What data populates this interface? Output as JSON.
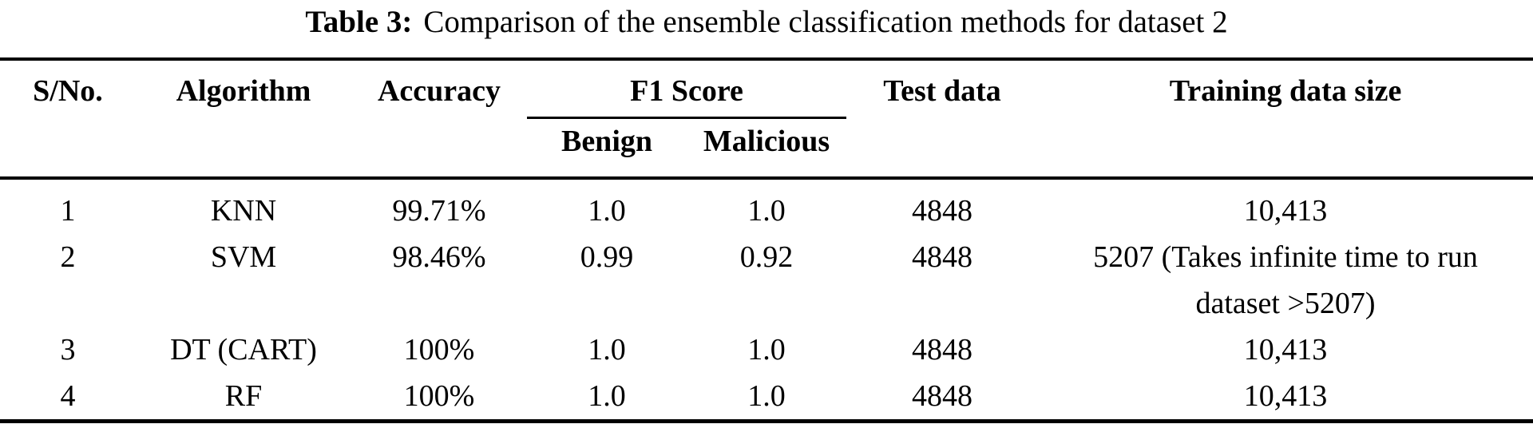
{
  "caption": {
    "label": "Table 3:",
    "text": "Comparison of the ensemble classification methods for dataset 2"
  },
  "table": {
    "headers": {
      "sno": "S/No.",
      "algorithm": "Algorithm",
      "accuracy": "Accuracy",
      "f1_group": "F1 Score",
      "f1_benign": "Benign",
      "f1_malicious": "Malicious",
      "test_data": "Test data",
      "training_size": "Training data size"
    },
    "rows": [
      {
        "sno": "1",
        "algorithm": "KNN",
        "accuracy": "99.71%",
        "benign": "1.0",
        "malicious": "1.0",
        "test": "4848",
        "training": "10,413"
      },
      {
        "sno": "2",
        "algorithm": "SVM",
        "accuracy": "98.46%",
        "benign": "0.99",
        "malicious": "0.92",
        "test": "4848",
        "training": "5207 (Takes infinite time to run dataset >5207)"
      },
      {
        "sno": "3",
        "algorithm": "DT (CART)",
        "accuracy": "100%",
        "benign": "1.0",
        "malicious": "1.0",
        "test": "4848",
        "training": "10,413"
      },
      {
        "sno": "4",
        "algorithm": "RF",
        "accuracy": "100%",
        "benign": "1.0",
        "malicious": "1.0",
        "test": "4848",
        "training": "10,413"
      }
    ]
  },
  "colors": {
    "text": "#000000",
    "background": "#ffffff",
    "rule": "#000000"
  }
}
